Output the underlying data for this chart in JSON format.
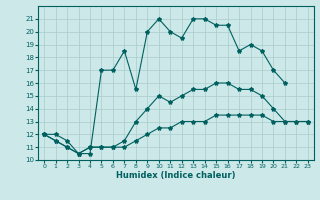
{
  "xlabel": "Humidex (Indice chaleur)",
  "x": [
    0,
    1,
    2,
    3,
    4,
    5,
    6,
    7,
    8,
    9,
    10,
    11,
    12,
    13,
    14,
    15,
    16,
    17,
    18,
    19,
    20,
    21,
    22,
    23
  ],
  "line_top": [
    12,
    12,
    11.5,
    10.5,
    10.5,
    17,
    17,
    18.5,
    15.5,
    20,
    21,
    20,
    19.5,
    21,
    21,
    20.5,
    20.5,
    18.5,
    19,
    18.5,
    17,
    16,
    null,
    null
  ],
  "line_mid": [
    12,
    11.5,
    11,
    10.5,
    11,
    11,
    11,
    11.5,
    13,
    14,
    15,
    14.5,
    15,
    15.5,
    15.5,
    16,
    16,
    15.5,
    15.5,
    15,
    14,
    13,
    13,
    13
  ],
  "line_bot": [
    12,
    11.5,
    11,
    10.5,
    11,
    11,
    11,
    11,
    11.5,
    12,
    12.5,
    12.5,
    13,
    13,
    13,
    13.5,
    13.5,
    13.5,
    13.5,
    13.5,
    13,
    13,
    13,
    13
  ],
  "bg_color": "#cce8e8",
  "grid_color": "#aacccc",
  "line_color": "#006060",
  "ylim": [
    10,
    22
  ],
  "xlim": [
    -0.5,
    23.5
  ],
  "yticks": [
    10,
    11,
    12,
    13,
    14,
    15,
    16,
    17,
    18,
    19,
    20,
    21
  ],
  "xticks": [
    0,
    1,
    2,
    3,
    4,
    5,
    6,
    7,
    8,
    9,
    10,
    11,
    12,
    13,
    14,
    15,
    16,
    17,
    18,
    19,
    20,
    21,
    22,
    23
  ]
}
